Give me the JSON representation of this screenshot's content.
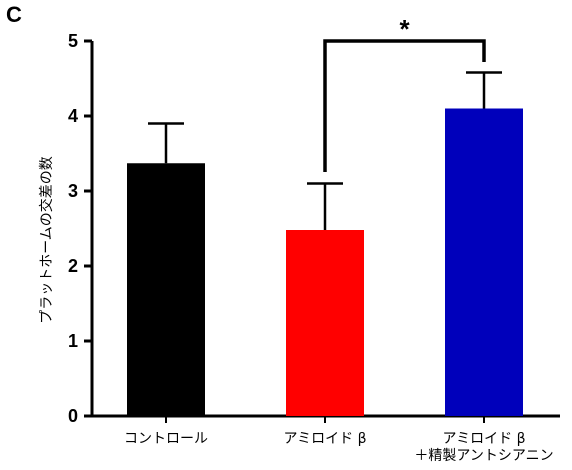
{
  "panel_label": "C",
  "chart_data": {
    "type": "bar",
    "title": "",
    "xlabel": "",
    "ylabel": "プラットホームの交差の数",
    "ylim": [
      0,
      5
    ],
    "yticks": [
      "0",
      "1",
      "2",
      "3",
      "4",
      "5"
    ],
    "categories": [
      [
        "コントロール"
      ],
      [
        "アミロイド β"
      ],
      [
        "アミロイド β",
        "＋精製アントシアニン"
      ]
    ],
    "values": [
      3.37,
      2.48,
      4.1
    ],
    "errors": [
      0.53,
      0.62,
      0.48
    ],
    "colors": [
      "#000000",
      "#ff0000",
      "#0000bb"
    ],
    "significance": {
      "from": 1,
      "to": 2,
      "label": "*"
    },
    "grid": false,
    "legend": "none"
  }
}
